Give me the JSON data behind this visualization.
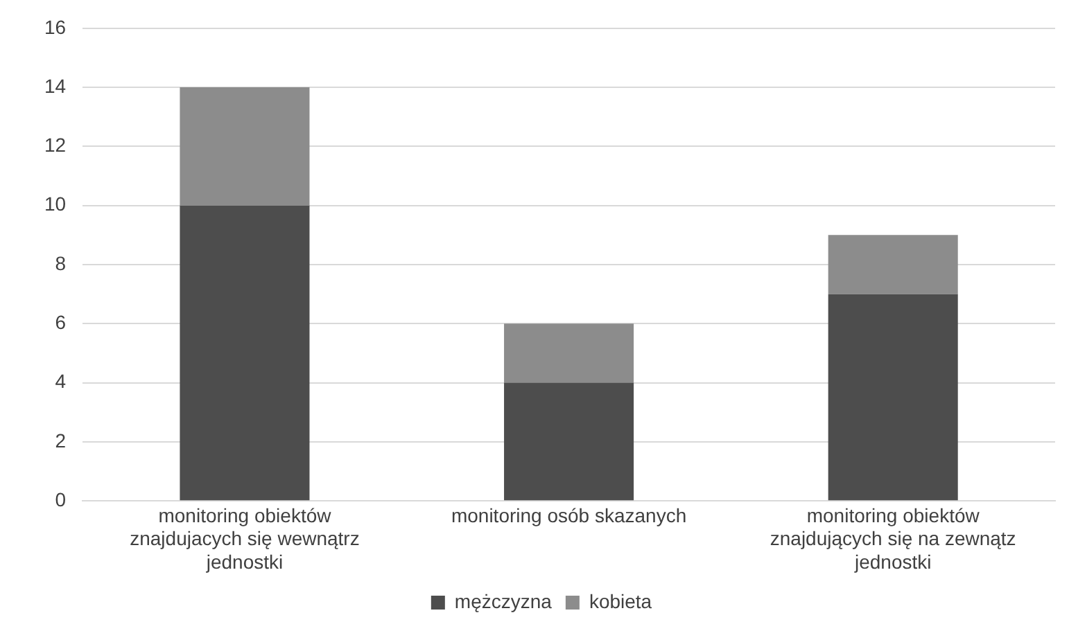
{
  "chart_data": {
    "type": "bar",
    "stacked": true,
    "categories": [
      "monitoring obiektów znajdujacych się wewnątrz jednostki",
      "monitoring osób skazanych",
      "monitoring obiektów znajdujących się na zewnątz jednostki"
    ],
    "series": [
      {
        "name": "mężczyzna",
        "color": "#4d4d4d",
        "values": [
          10,
          4,
          7
        ]
      },
      {
        "name": "kobieta",
        "color": "#8c8c8c",
        "values": [
          4,
          2,
          2
        ]
      }
    ],
    "ylim": [
      0,
      16
    ],
    "yticks": [
      0,
      2,
      4,
      6,
      8,
      10,
      12,
      14,
      16
    ],
    "grid": "y",
    "legend": "bottom"
  }
}
